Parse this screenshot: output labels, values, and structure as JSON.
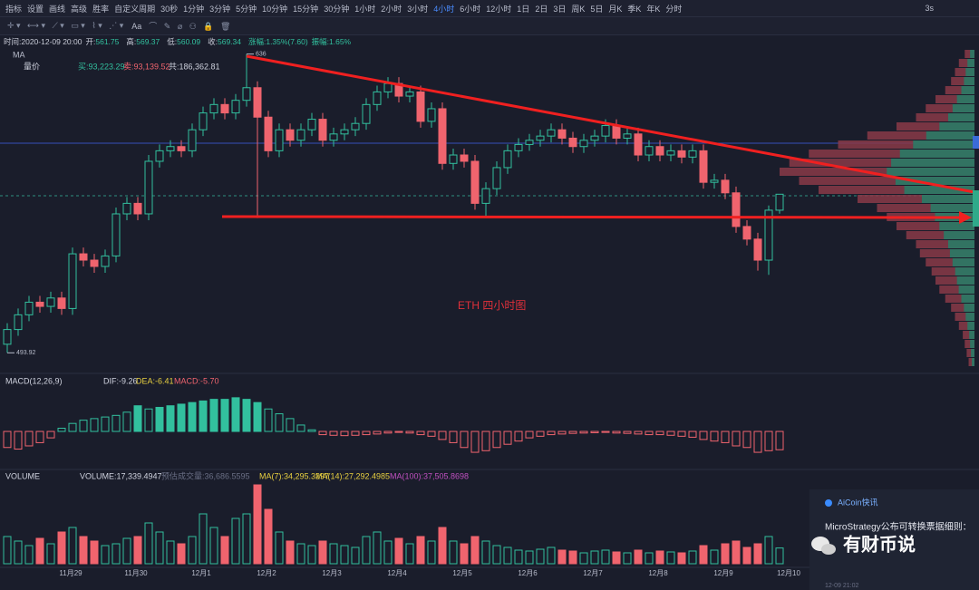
{
  "toolbar": {
    "left": [
      "指标",
      "设置",
      "画线",
      "高级",
      "胜率",
      "自定义周期",
      "30秒",
      "1分钟",
      "3分钟",
      "5分钟",
      "10分钟",
      "15分钟",
      "30分钟",
      "1小时",
      "2小时",
      "3小时",
      "4小时",
      "6小时",
      "12小时",
      "1日",
      "2日",
      "3日",
      "周K",
      "5日",
      "月K",
      "季K",
      "年K",
      "分时"
    ],
    "active": "4小时",
    "right": "3s",
    "tools_text": "Aa"
  },
  "header": {
    "time": "时间:2020-12-09 20:00",
    "open_label": "开:",
    "high_label": "高:",
    "low_label": "低:",
    "close_label": "收:",
    "change": "涨幅:1.35%(7.60)",
    "amplitude": "振幅:1.65%"
  },
  "overlay": {
    "ma_label": "MA",
    "volume_price_label": "量价",
    "buy": "买:93,223.29",
    "sell": "卖:93,139.52",
    "total": "共:186,362.81",
    "annotation": "ETH  四小时图"
  },
  "macd_panel": {
    "title": "MACD(12,26,9)",
    "dif": "DIF:-9.26",
    "dea": "DEA:-6.41",
    "macd": "MACD:-5.70"
  },
  "volume_panel": {
    "title": "VOLUME",
    "volume": "VOLUME:17,339.4947",
    "estimate": "预估成交量:36,686.5595",
    "ma7": "MA(7):34,295.3297",
    "ma14": "MA(14):27,292.4985",
    "ma100": "MA(100):37,505.8698"
  },
  "news": {
    "source": "AiCoin快讯",
    "headline": "MicroStrategy公布可转换票据细则：",
    "time": "12-09 21:02"
  },
  "watermark": "有财币说",
  "chart_data": {
    "type": "candlestick",
    "categories": [
      null,
      null,
      null,
      null,
      null,
      "11月29",
      null,
      null,
      null,
      null,
      null,
      "11月30",
      null,
      null,
      null,
      null,
      null,
      "12月1",
      null,
      null,
      null,
      null,
      null,
      "12月2",
      null,
      null,
      null,
      null,
      null,
      "12月3",
      null,
      null,
      null,
      null,
      null,
      "12月4",
      null,
      null,
      null,
      null,
      null,
      "12月5",
      null,
      null,
      null,
      null,
      null,
      "12月6",
      null,
      null,
      null,
      null,
      null,
      "12月7",
      null,
      null,
      null,
      null,
      null,
      "12月8",
      null,
      null,
      null,
      null,
      null,
      "12月9",
      null,
      null,
      null,
      null,
      null,
      "12月10"
    ],
    "open": [
      498,
      505,
      512,
      518,
      516,
      520,
      515,
      541,
      538,
      535,
      540,
      560,
      565,
      560,
      585,
      590,
      592,
      590,
      600,
      608,
      612,
      608,
      614,
      620,
      606,
      590,
      600,
      595,
      600,
      605,
      595,
      598,
      600,
      603,
      612,
      618,
      622,
      616,
      618,
      604,
      610,
      584,
      588,
      585,
      565,
      572,
      582,
      590,
      593,
      595,
      597,
      600,
      596,
      592,
      595,
      597,
      602,
      596,
      598,
      588,
      592,
      588,
      590,
      587,
      590,
      575,
      576,
      570,
      554,
      548,
      538,
      561.75
    ],
    "high": [
      508,
      515,
      521,
      521,
      523,
      523,
      544,
      544,
      541,
      543,
      563,
      568,
      568,
      588,
      593,
      595,
      595,
      603,
      611,
      615,
      615,
      617,
      636,
      623,
      609,
      603,
      603,
      603,
      608,
      608,
      601,
      603,
      606,
      615,
      621,
      625,
      625,
      621,
      621,
      613,
      613,
      591,
      591,
      588,
      575,
      585,
      593,
      596,
      598,
      600,
      603,
      603,
      599,
      598,
      600,
      605,
      605,
      601,
      601,
      595,
      595,
      593,
      593,
      593,
      593,
      579,
      579,
      573,
      557,
      551,
      564,
      569.37
    ],
    "low": [
      493.92,
      502,
      509,
      513,
      513,
      512,
      512,
      535,
      532,
      532,
      537,
      557,
      557,
      557,
      582,
      587,
      587,
      587,
      597,
      605,
      605,
      605,
      611,
      558,
      587,
      587,
      592,
      592,
      597,
      592,
      592,
      595,
      597,
      600,
      609,
      615,
      613,
      613,
      601,
      601,
      581,
      581,
      582,
      562,
      559,
      569,
      579,
      587,
      590,
      592,
      594,
      593,
      589,
      589,
      592,
      594,
      593,
      593,
      585,
      585,
      585,
      585,
      584,
      584,
      572,
      572,
      567,
      551,
      545,
      533,
      531,
      560.09
    ],
    "close": [
      505,
      512,
      518,
      516,
      520,
      515,
      541,
      538,
      535,
      540,
      560,
      565,
      560,
      585,
      590,
      592,
      590,
      600,
      608,
      612,
      608,
      614,
      620,
      606,
      590,
      600,
      595,
      600,
      605,
      595,
      598,
      600,
      603,
      612,
      618,
      622,
      616,
      618,
      604,
      610,
      584,
      588,
      585,
      565,
      572,
      582,
      590,
      593,
      595,
      597,
      600,
      596,
      592,
      595,
      597,
      602,
      596,
      598,
      588,
      592,
      588,
      590,
      587,
      590,
      575,
      576,
      570,
      554,
      548,
      538,
      561.75,
      569.34
    ],
    "ylim": [
      485,
      638
    ],
    "up_color": "#32c09e",
    "down_color": "#f0646e",
    "macd": {
      "values": [
        -5,
        -5.5,
        -4.5,
        -3.5,
        -2,
        1,
        2.5,
        3.5,
        4,
        4.5,
        5,
        6,
        8,
        7,
        7.5,
        8,
        8.5,
        9,
        9.5,
        10,
        10,
        10.5,
        10,
        9,
        7,
        5.5,
        4,
        2,
        0.5,
        -1,
        -1.2,
        -1.3,
        -1.2,
        -1,
        -0.8,
        -0.5,
        -0.3,
        -0.5,
        -1,
        -1.5,
        -2.5,
        -3.5,
        -5,
        -6.5,
        -6,
        -5,
        -4,
        -3,
        -2,
        -1.5,
        -1,
        -0.8,
        -0.6,
        -0.5,
        -0.4,
        -0.3,
        -0.5,
        -0.6,
        -0.8,
        -1,
        -1,
        -1.2,
        -1.5,
        -1.8,
        -2.5,
        -3,
        -3.5,
        -4.5,
        -5,
        -6.5,
        -6,
        -5.7
      ],
      "ylim": [
        -11,
        13
      ]
    },
    "volume": {
      "values": [
        30000,
        25000,
        20000,
        28000,
        22000,
        35000,
        40000,
        30000,
        25000,
        20000,
        22000,
        28000,
        30000,
        45000,
        35000,
        25000,
        22000,
        30000,
        55000,
        40000,
        30000,
        50000,
        55000,
        87000,
        60000,
        35000,
        25000,
        22000,
        20000,
        25000,
        22000,
        20000,
        18000,
        30000,
        35000,
        25000,
        28000,
        22000,
        30000,
        25000,
        40000,
        25000,
        22000,
        30000,
        25000,
        20000,
        18000,
        15000,
        14000,
        16000,
        18000,
        15000,
        14000,
        12000,
        14000,
        15000,
        13000,
        12000,
        15000,
        12000,
        14000,
        13000,
        12000,
        14000,
        20000,
        15000,
        22000,
        25000,
        18000,
        22000,
        30000,
        17339.4947
      ],
      "ylim": [
        0,
        92000
      ]
    },
    "volume_profile": {
      "values": [
        5,
        8,
        10,
        12,
        15,
        20,
        25,
        30,
        40,
        55,
        70,
        85,
        95,
        100,
        90,
        80,
        60,
        50,
        45,
        40,
        35,
        30,
        28,
        25,
        22,
        20,
        18,
        15,
        12,
        10,
        8,
        6,
        5,
        4,
        3
      ],
      "ylim": [
        0,
        100
      ],
      "sell_color": "#8a3a48",
      "buy_color": "#2a7a66"
    }
  }
}
